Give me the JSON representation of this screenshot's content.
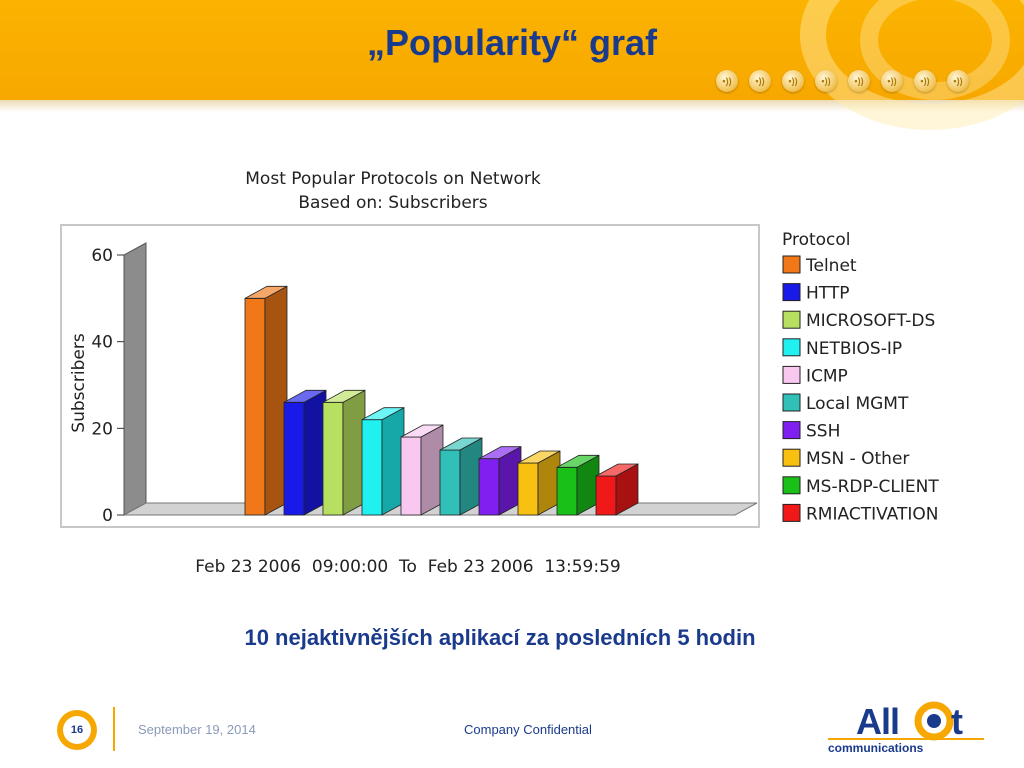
{
  "slide": {
    "title": "„Popularity“ graf",
    "subtitle": "10 nejaktivnějších aplikací za posledních 5 hodin",
    "page_number": "16",
    "date": "September 19, 2014",
    "confidential": "Company Confidential",
    "nav_dots": [
      "•))",
      "•))",
      "•))",
      "•))",
      "•))",
      "•))",
      "•))",
      "•))"
    ],
    "logo": {
      "word": "Allot",
      "tagline": "communications"
    },
    "colors": {
      "header": "#f7a800",
      "title": "#1a3a8c"
    }
  },
  "chart_data": {
    "type": "bar",
    "title": "Most Popular Protocols on Network",
    "subtitle": "Based on: Subscribers",
    "ylabel": "Subscribers",
    "xlabel": "Feb 23 2006  09:00:00  To  Feb 23 2006  13:59:59",
    "ylim": [
      0,
      60
    ],
    "yticks": [
      "0",
      "20",
      "40",
      "60"
    ],
    "legend_title": "Protocol",
    "legend_position": "right",
    "series": [
      {
        "name": "Telnet",
        "value": 50,
        "color": "#f07818"
      },
      {
        "name": "HTTP",
        "value": 26,
        "color": "#1a1ae8"
      },
      {
        "name": "MICROSOFT-DS",
        "value": 26,
        "color": "#b8e060"
      },
      {
        "name": "NETBIOS-IP",
        "value": 22,
        "color": "#20f0f0"
      },
      {
        "name": "ICMP",
        "value": 18,
        "color": "#f8c8f0"
      },
      {
        "name": "Local MGMT",
        "value": 15,
        "color": "#30c0b8"
      },
      {
        "name": "SSH",
        "value": 13,
        "color": "#8020f0"
      },
      {
        "name": "MSN - Other",
        "value": 12,
        "color": "#f8c010"
      },
      {
        "name": "MS-RDP-CLIENT",
        "value": 11,
        "color": "#18c018"
      },
      {
        "name": "RMIACTIVATION",
        "value": 9,
        "color": "#f01818"
      }
    ]
  }
}
